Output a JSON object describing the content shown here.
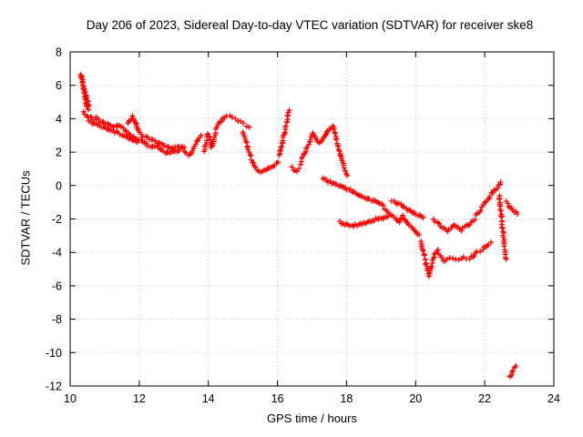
{
  "chart_data": {
    "type": "scatter",
    "title": "Day 206 of 2023, Sidereal Day-to-day VTEC variation (SDTVAR) for receiver ske8",
    "xlabel": "GPS time / hours",
    "ylabel": "SDTVAR / TECUs",
    "xlim": [
      10,
      24
    ],
    "ylim": [
      -12,
      8
    ],
    "xticks": [
      10,
      12,
      14,
      16,
      18,
      20,
      22,
      24
    ],
    "yticks": [
      -12,
      -10,
      -8,
      -6,
      -4,
      -2,
      0,
      2,
      4,
      6,
      8
    ],
    "grid": true,
    "legend": "none",
    "marker": "plus",
    "marker_color": "#ff0000",
    "series_name": "SDTVAR",
    "traces": [
      [
        [
          10.3,
          6.7
        ],
        [
          10.33,
          6.4
        ],
        [
          10.36,
          6.1
        ],
        [
          10.38,
          5.85
        ],
        [
          10.4,
          5.6
        ],
        [
          10.42,
          5.35
        ],
        [
          10.45,
          5.1
        ],
        [
          10.47,
          4.9
        ],
        [
          10.5,
          4.7
        ],
        [
          10.53,
          4.55
        ]
      ],
      [
        [
          10.33,
          6.55
        ],
        [
          10.36,
          6.25
        ],
        [
          10.39,
          5.95
        ],
        [
          10.42,
          5.7
        ],
        [
          10.45,
          5.45
        ],
        [
          10.48,
          5.2
        ],
        [
          10.51,
          5.0
        ],
        [
          10.54,
          4.8
        ]
      ],
      [
        [
          10.38,
          4.4
        ],
        [
          10.43,
          4.25
        ],
        [
          10.48,
          4.15
        ],
        [
          10.53,
          4.05
        ],
        [
          10.58,
          4.1
        ],
        [
          10.63,
          4.05
        ],
        [
          10.68,
          3.95
        ],
        [
          10.73,
          4.1
        ],
        [
          10.78,
          4.05
        ],
        [
          10.83,
          3.95
        ],
        [
          10.88,
          3.85
        ],
        [
          10.93,
          3.8
        ],
        [
          10.98,
          3.75
        ],
        [
          11.03,
          3.7
        ],
        [
          11.08,
          3.65
        ],
        [
          11.13,
          3.6
        ],
        [
          11.18,
          3.55
        ],
        [
          11.23,
          3.55
        ],
        [
          11.28,
          3.5
        ],
        [
          11.33,
          3.55
        ],
        [
          11.38,
          3.6
        ],
        [
          11.43,
          3.55
        ],
        [
          11.48,
          3.5
        ],
        [
          11.53,
          3.45
        ],
        [
          11.58,
          3.35
        ],
        [
          11.63,
          3.25
        ],
        [
          11.68,
          3.15
        ],
        [
          11.73,
          3.05
        ],
        [
          11.78,
          2.95
        ],
        [
          11.83,
          2.9
        ],
        [
          11.88,
          2.85
        ],
        [
          11.93,
          2.8
        ],
        [
          11.98,
          2.75
        ]
      ],
      [
        [
          10.55,
          3.85
        ],
        [
          10.65,
          3.75
        ],
        [
          10.75,
          3.7
        ],
        [
          10.85,
          3.6
        ],
        [
          10.95,
          3.5
        ],
        [
          11.05,
          3.4
        ],
        [
          11.15,
          3.3
        ],
        [
          11.25,
          3.25
        ],
        [
          11.35,
          3.2
        ],
        [
          11.45,
          3.1
        ],
        [
          11.55,
          3.0
        ],
        [
          11.65,
          2.9
        ],
        [
          11.75,
          2.8
        ],
        [
          11.85,
          2.7
        ],
        [
          11.95,
          2.6
        ]
      ],
      [
        [
          11.68,
          3.7
        ],
        [
          11.72,
          3.9
        ],
        [
          11.76,
          4.05
        ],
        [
          11.8,
          4.15
        ],
        [
          11.84,
          4.0
        ],
        [
          11.88,
          3.8
        ],
        [
          11.92,
          3.6
        ],
        [
          11.96,
          3.4
        ],
        [
          12.0,
          3.2
        ],
        [
          12.05,
          3.05
        ],
        [
          12.1,
          2.9
        ]
      ],
      [
        [
          12.05,
          2.7
        ],
        [
          12.15,
          2.55
        ],
        [
          12.25,
          2.4
        ],
        [
          12.35,
          2.3
        ],
        [
          12.45,
          2.4
        ],
        [
          12.55,
          2.25
        ],
        [
          12.65,
          2.1
        ],
        [
          12.75,
          2.0
        ],
        [
          12.85,
          1.95
        ],
        [
          12.95,
          2.0
        ],
        [
          13.05,
          2.05
        ],
        [
          13.15,
          2.1
        ]
      ],
      [
        [
          12.2,
          2.95
        ],
        [
          12.3,
          2.8
        ],
        [
          12.4,
          2.7
        ],
        [
          12.5,
          2.6
        ],
        [
          12.6,
          2.5
        ],
        [
          12.7,
          2.4
        ],
        [
          12.8,
          2.3
        ],
        [
          12.9,
          2.25
        ],
        [
          13.0,
          2.2
        ],
        [
          13.1,
          2.3
        ],
        [
          13.2,
          2.35
        ],
        [
          13.3,
          2.3
        ]
      ],
      [
        [
          13.25,
          2.2
        ],
        [
          13.31,
          2.05
        ],
        [
          13.37,
          1.9
        ],
        [
          13.43,
          1.8
        ],
        [
          13.49,
          1.9
        ],
        [
          13.55,
          2.1
        ],
        [
          13.61,
          2.35
        ],
        [
          13.67,
          2.65
        ],
        [
          13.73,
          2.85
        ],
        [
          13.79,
          3.0
        ]
      ],
      [
        [
          13.88,
          2.0
        ],
        [
          13.91,
          2.3
        ],
        [
          13.94,
          2.6
        ],
        [
          13.97,
          2.9
        ],
        [
          14.0,
          3.1
        ],
        [
          14.03,
          2.85
        ],
        [
          14.06,
          2.55
        ],
        [
          14.09,
          2.25
        ],
        [
          14.12,
          2.45
        ],
        [
          14.15,
          2.7
        ],
        [
          14.18,
          2.95
        ],
        [
          14.21,
          3.15
        ]
      ],
      [
        [
          14.22,
          3.4
        ],
        [
          14.3,
          3.7
        ],
        [
          14.38,
          3.9
        ],
        [
          14.46,
          4.1
        ],
        [
          14.54,
          4.2
        ],
        [
          14.62,
          4.2
        ],
        [
          14.7,
          4.1
        ],
        [
          14.78,
          4.0
        ],
        [
          14.86,
          3.9
        ],
        [
          14.94,
          3.8
        ],
        [
          15.02,
          3.7
        ],
        [
          15.1,
          3.6
        ],
        [
          15.18,
          3.5
        ]
      ],
      [
        [
          15.0,
          3.2
        ],
        [
          15.06,
          2.8
        ],
        [
          15.12,
          2.4
        ],
        [
          15.18,
          2.0
        ],
        [
          15.24,
          1.6
        ],
        [
          15.3,
          1.3
        ],
        [
          15.36,
          1.1
        ]
      ],
      [
        [
          15.42,
          0.95
        ],
        [
          15.52,
          0.85
        ],
        [
          15.62,
          0.9
        ],
        [
          15.72,
          1.0
        ],
        [
          15.82,
          1.1
        ],
        [
          15.92,
          1.2
        ],
        [
          16.02,
          1.4
        ]
      ],
      [
        [
          16.06,
          1.8
        ],
        [
          16.11,
          2.25
        ],
        [
          16.16,
          2.7
        ],
        [
          16.21,
          3.2
        ],
        [
          16.26,
          3.75
        ],
        [
          16.31,
          4.25
        ],
        [
          16.34,
          4.5
        ]
      ],
      [
        [
          16.42,
          1.1
        ],
        [
          16.47,
          0.95
        ],
        [
          16.52,
          0.85
        ],
        [
          16.57,
          0.9
        ],
        [
          16.62,
          1.0
        ]
      ],
      [
        [
          16.66,
          1.3
        ],
        [
          16.74,
          1.7
        ],
        [
          16.82,
          2.1
        ],
        [
          16.9,
          2.5
        ],
        [
          16.98,
          2.85
        ],
        [
          17.04,
          3.1
        ],
        [
          17.1,
          2.9
        ],
        [
          17.16,
          2.65
        ],
        [
          17.22,
          2.5
        ],
        [
          17.3,
          2.7
        ],
        [
          17.38,
          3.0
        ],
        [
          17.46,
          3.3
        ],
        [
          17.54,
          3.5
        ],
        [
          17.6,
          3.6
        ],
        [
          17.66,
          3.2
        ],
        [
          17.72,
          2.7
        ],
        [
          17.78,
          2.2
        ],
        [
          17.84,
          1.7
        ],
        [
          17.9,
          1.3
        ],
        [
          17.96,
          0.9
        ],
        [
          18.02,
          0.6
        ]
      ],
      [
        [
          17.32,
          0.4
        ],
        [
          17.42,
          0.3
        ],
        [
          17.52,
          0.2
        ],
        [
          17.62,
          0.1
        ],
        [
          17.72,
          0.05
        ],
        [
          17.82,
          0.0
        ],
        [
          17.92,
          -0.1
        ],
        [
          18.02,
          -0.2
        ],
        [
          18.12,
          -0.3
        ],
        [
          18.22,
          -0.4
        ],
        [
          18.32,
          -0.5
        ],
        [
          18.42,
          -0.6
        ],
        [
          18.52,
          -0.7
        ],
        [
          18.62,
          -0.8
        ],
        [
          18.72,
          -0.9
        ],
        [
          18.82,
          -0.95
        ],
        [
          18.92,
          -1.0
        ],
        [
          19.02,
          -1.1
        ]
      ],
      [
        [
          17.8,
          -2.2
        ],
        [
          17.9,
          -2.3
        ],
        [
          18.0,
          -2.3
        ],
        [
          18.1,
          -2.4
        ],
        [
          18.2,
          -2.4
        ],
        [
          18.3,
          -2.35
        ],
        [
          18.4,
          -2.3
        ],
        [
          18.5,
          -2.25
        ],
        [
          18.6,
          -2.2
        ],
        [
          18.7,
          -2.15
        ],
        [
          18.8,
          -2.05
        ],
        [
          18.9,
          -2.0
        ],
        [
          19.0,
          -1.95
        ],
        [
          19.1,
          -1.9
        ],
        [
          19.2,
          -1.85
        ]
      ],
      [
        [
          19.05,
          -1.25
        ],
        [
          19.15,
          -1.45
        ],
        [
          19.25,
          -1.65
        ],
        [
          19.35,
          -1.85
        ],
        [
          19.45,
          -2.05
        ],
        [
          19.52,
          -2.2
        ],
        [
          19.58,
          -2.0
        ],
        [
          19.64,
          -1.85
        ],
        [
          19.7,
          -2.1
        ],
        [
          19.78,
          -2.3
        ],
        [
          19.86,
          -2.45
        ],
        [
          19.94,
          -2.6
        ],
        [
          20.02,
          -2.75
        ],
        [
          20.1,
          -2.95
        ]
      ],
      [
        [
          19.32,
          -0.9
        ],
        [
          19.42,
          -1.0
        ],
        [
          19.52,
          -1.1
        ],
        [
          19.62,
          -1.2
        ],
        [
          19.72,
          -1.35
        ],
        [
          19.82,
          -1.5
        ],
        [
          19.92,
          -1.6
        ],
        [
          20.02,
          -1.7
        ],
        [
          20.12,
          -1.8
        ],
        [
          20.22,
          -1.9
        ]
      ],
      [
        [
          20.14,
          -3.3
        ],
        [
          20.19,
          -3.7
        ],
        [
          20.24,
          -4.1
        ],
        [
          20.28,
          -4.5
        ],
        [
          20.31,
          -4.85
        ],
        [
          20.34,
          -5.15
        ],
        [
          20.38,
          -5.4
        ],
        [
          20.42,
          -5.15
        ],
        [
          20.46,
          -4.8
        ],
        [
          20.5,
          -4.5
        ],
        [
          20.54,
          -4.25
        ],
        [
          20.58,
          -4.05
        ],
        [
          20.64,
          -3.85
        ]
      ],
      [
        [
          20.68,
          -4.15
        ],
        [
          20.76,
          -4.35
        ],
        [
          20.84,
          -4.5
        ],
        [
          20.92,
          -4.4
        ],
        [
          21.0,
          -4.3
        ],
        [
          21.08,
          -4.35
        ],
        [
          21.16,
          -4.45
        ],
        [
          21.24,
          -4.5
        ],
        [
          21.32,
          -4.4
        ],
        [
          21.4,
          -4.3
        ],
        [
          21.48,
          -4.35
        ],
        [
          21.56,
          -4.4
        ]
      ],
      [
        [
          21.62,
          -4.3
        ],
        [
          21.7,
          -4.15
        ],
        [
          21.78,
          -4.0
        ],
        [
          21.86,
          -3.9
        ],
        [
          21.94,
          -3.8
        ],
        [
          22.02,
          -3.65
        ],
        [
          22.1,
          -3.5
        ],
        [
          22.18,
          -3.4
        ]
      ],
      [
        [
          20.52,
          -2.0
        ],
        [
          20.62,
          -2.2
        ],
        [
          20.72,
          -2.4
        ],
        [
          20.82,
          -2.6
        ],
        [
          20.92,
          -2.7
        ],
        [
          21.02,
          -2.55
        ],
        [
          21.12,
          -2.35
        ],
        [
          21.22,
          -2.5
        ],
        [
          21.32,
          -2.65
        ],
        [
          21.42,
          -2.5
        ],
        [
          21.52,
          -2.35
        ],
        [
          21.62,
          -2.2
        ],
        [
          21.72,
          -2.05
        ]
      ],
      [
        [
          21.76,
          -1.8
        ],
        [
          21.84,
          -1.55
        ],
        [
          21.92,
          -1.3
        ],
        [
          22.0,
          -1.05
        ],
        [
          22.08,
          -0.85
        ],
        [
          22.16,
          -0.6
        ],
        [
          22.24,
          -0.4
        ],
        [
          22.32,
          -0.2
        ],
        [
          22.4,
          0.0
        ],
        [
          22.46,
          0.2
        ]
      ],
      [
        [
          22.42,
          -0.6
        ],
        [
          22.44,
          -1.0
        ],
        [
          22.46,
          -1.4
        ],
        [
          22.48,
          -1.8
        ],
        [
          22.5,
          -2.2
        ],
        [
          22.52,
          -2.6
        ],
        [
          22.54,
          -3.0
        ],
        [
          22.56,
          -3.4
        ],
        [
          22.58,
          -3.8
        ],
        [
          22.6,
          -4.1
        ],
        [
          22.62,
          -4.4
        ]
      ],
      [
        [
          22.62,
          -1.0
        ],
        [
          22.7,
          -1.2
        ],
        [
          22.78,
          -1.4
        ],
        [
          22.86,
          -1.55
        ],
        [
          22.94,
          -1.7
        ]
      ],
      [
        [
          22.74,
          -11.5
        ],
        [
          22.78,
          -11.3
        ],
        [
          22.82,
          -11.1
        ],
        [
          22.86,
          -10.95
        ],
        [
          22.9,
          -10.8
        ]
      ]
    ]
  }
}
